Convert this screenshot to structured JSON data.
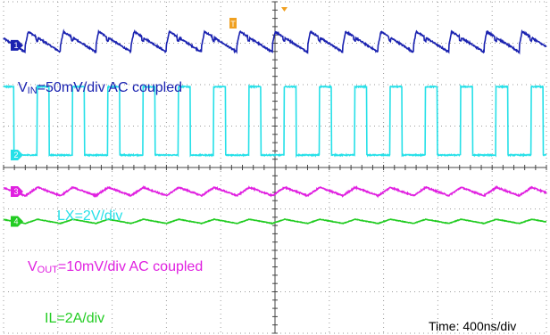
{
  "chart_data": {
    "type": "line",
    "title": "",
    "xlabel": "",
    "ylabel": "",
    "grid": true,
    "divisions": {
      "x": 10,
      "y": 8
    },
    "timebase": "Time: 400ns/div",
    "trigger_marker": "T",
    "channels": [
      {
        "id": "1",
        "name": "VIN",
        "name_main": "V",
        "name_sub": "IN",
        "scale_text": "=50mV/div AC coupled",
        "color": "#1a22b0",
        "ground_div": 1.05,
        "waveform": "sawtooth_ripple",
        "period_div": 0.65,
        "amplitude_div": 0.33,
        "first_edge_div": 0.4
      },
      {
        "id": "2",
        "name": "LX",
        "scale_text": "LX=2V/div",
        "color": "#26e0e8",
        "ground_div": 3.7,
        "waveform": "pulse",
        "high_div": 1.65,
        "period_div": 0.65,
        "first_edge_div": 0.62,
        "pulse_width_div": 0.22
      },
      {
        "id": "3",
        "name": "VOUT",
        "name_main": "V",
        "name_sub": "OUT",
        "scale_text": "=10mV/div AC coupled",
        "color": "#e020e0",
        "ground_div": 4.58,
        "waveform": "ramp_ripple",
        "period_div": 0.65,
        "amplitude_div": 0.2,
        "first_edge_div": 0.4
      },
      {
        "id": "4",
        "name": "IL",
        "scale_text": "IL=2A/div",
        "color": "#22cc22",
        "ground_div": 5.3,
        "waveform": "triangle",
        "period_div": 0.65,
        "amplitude_div": 0.1,
        "first_edge_div": 0.4
      }
    ]
  }
}
